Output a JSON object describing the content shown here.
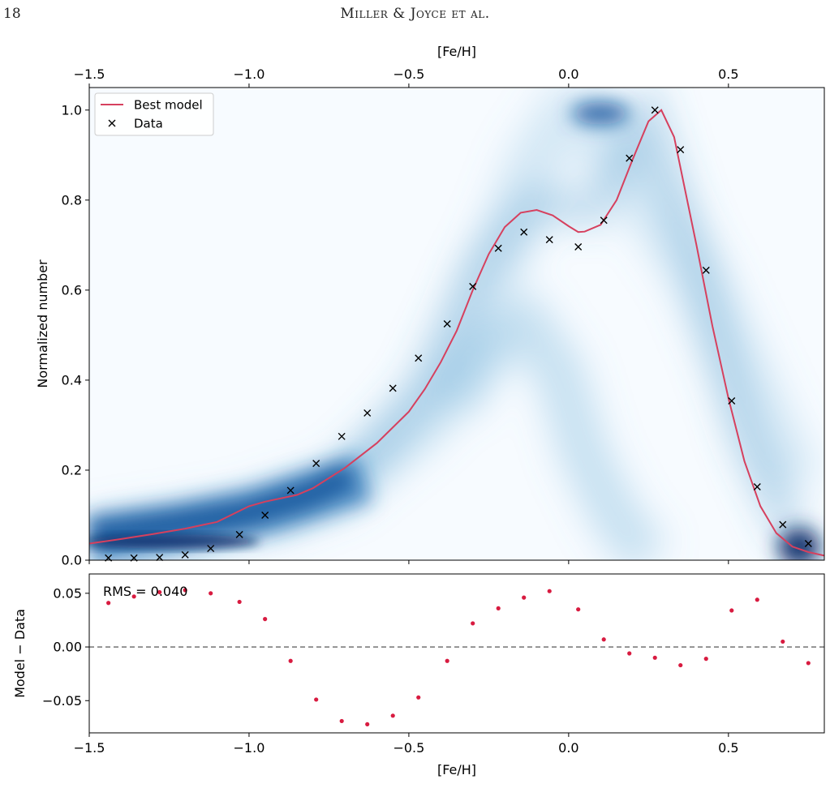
{
  "page_number": "18",
  "running_head": "Miller & Joyce et al.",
  "colors": {
    "model": "#d6405e",
    "data": "#000000",
    "residual": "#d81b40",
    "zero_line": "#444444",
    "heatmap_low": "#f7fbff",
    "heatmap_high": "#08306b"
  },
  "chart_data": [
    {
      "type": "line",
      "role": "main",
      "xlabel": "[Fe/H]",
      "ylabel": "Normalized number",
      "xlim": [
        -1.5,
        0.8
      ],
      "ylim": [
        0.0,
        1.05
      ],
      "xticks": [
        -1.5,
        -1.0,
        -0.5,
        0.0,
        0.5
      ],
      "xtick_labels": [
        "−1.5",
        "−1.0",
        "−0.5",
        "0.0",
        "0.5"
      ],
      "yticks": [
        0.0,
        0.2,
        0.4,
        0.6,
        0.8,
        1.0
      ],
      "ytick_labels": [
        "0.0",
        "0.2",
        "0.4",
        "0.6",
        "0.8",
        "1.0"
      ],
      "top_axis_label": "[Fe/H]",
      "legend": {
        "placement": "top-left",
        "entries": [
          "Best model",
          "Data"
        ]
      },
      "background_heatmap": "Blues density of model realizations",
      "series": [
        {
          "name": "Best model",
          "style": "line",
          "x": [
            -1.5,
            -1.4,
            -1.3,
            -1.2,
            -1.1,
            -1.0,
            -0.95,
            -0.85,
            -0.8,
            -0.7,
            -0.6,
            -0.5,
            -0.45,
            -0.4,
            -0.35,
            -0.3,
            -0.25,
            -0.2,
            -0.15,
            -0.1,
            -0.05,
            0.0,
            0.03,
            0.05,
            0.1,
            0.15,
            0.2,
            0.25,
            0.29,
            0.33,
            0.4,
            0.45,
            0.5,
            0.55,
            0.6,
            0.65,
            0.7,
            0.75,
            0.8
          ],
          "y": [
            0.037,
            0.047,
            0.058,
            0.07,
            0.085,
            0.12,
            0.13,
            0.145,
            0.16,
            0.205,
            0.26,
            0.33,
            0.38,
            0.44,
            0.51,
            0.6,
            0.68,
            0.74,
            0.772,
            0.778,
            0.766,
            0.742,
            0.729,
            0.73,
            0.745,
            0.8,
            0.89,
            0.975,
            1.0,
            0.94,
            0.7,
            0.52,
            0.36,
            0.22,
            0.12,
            0.06,
            0.03,
            0.018,
            0.01
          ]
        },
        {
          "name": "Data",
          "style": "x-marker",
          "x": [
            -1.44,
            -1.36,
            -1.28,
            -1.2,
            -1.12,
            -1.03,
            -0.95,
            -0.87,
            -0.79,
            -0.71,
            -0.63,
            -0.55,
            -0.47,
            -0.38,
            -0.3,
            -0.22,
            -0.14,
            -0.06,
            0.03,
            0.11,
            0.19,
            0.27,
            0.35,
            0.43,
            0.51,
            0.59,
            0.67,
            0.75
          ],
          "y": [
            0.005,
            0.005,
            0.006,
            0.012,
            0.026,
            0.057,
            0.1,
            0.155,
            0.215,
            0.275,
            0.327,
            0.382,
            0.449,
            0.525,
            0.608,
            0.693,
            0.729,
            0.712,
            0.696,
            0.755,
            0.893,
            1.0,
            0.912,
            0.644,
            0.354,
            0.163,
            0.079,
            0.037
          ]
        }
      ]
    },
    {
      "type": "scatter",
      "role": "residual",
      "xlabel": "[Fe/H]",
      "ylabel": "Model − Data",
      "xlim": [
        -1.5,
        0.8
      ],
      "ylim": [
        -0.08,
        0.068
      ],
      "xticks": [
        -1.5,
        -1.0,
        -0.5,
        0.0,
        0.5
      ],
      "xtick_labels": [
        "−1.5",
        "−1.0",
        "−0.5",
        "0.0",
        "0.5"
      ],
      "yticks": [
        0.05,
        0.0,
        -0.05
      ],
      "ytick_labels": [
        "0.05",
        "0.00",
        "−0.05"
      ],
      "annotation": "RMS = 0.040",
      "zero_line": true,
      "x": [
        -1.44,
        -1.36,
        -1.28,
        -1.2,
        -1.12,
        -1.03,
        -0.95,
        -0.87,
        -0.79,
        -0.71,
        -0.63,
        -0.55,
        -0.47,
        -0.38,
        -0.3,
        -0.22,
        -0.14,
        -0.06,
        0.03,
        0.11,
        0.19,
        0.27,
        0.35,
        0.43,
        0.51,
        0.59,
        0.67,
        0.75
      ],
      "y": [
        0.041,
        0.047,
        0.051,
        0.053,
        0.05,
        0.042,
        0.026,
        -0.013,
        -0.049,
        -0.069,
        -0.072,
        -0.064,
        -0.047,
        -0.013,
        0.022,
        0.036,
        0.046,
        0.052,
        0.035,
        0.007,
        -0.006,
        -0.01,
        -0.017,
        -0.011,
        0.034,
        0.044,
        0.005,
        -0.015
      ]
    }
  ]
}
